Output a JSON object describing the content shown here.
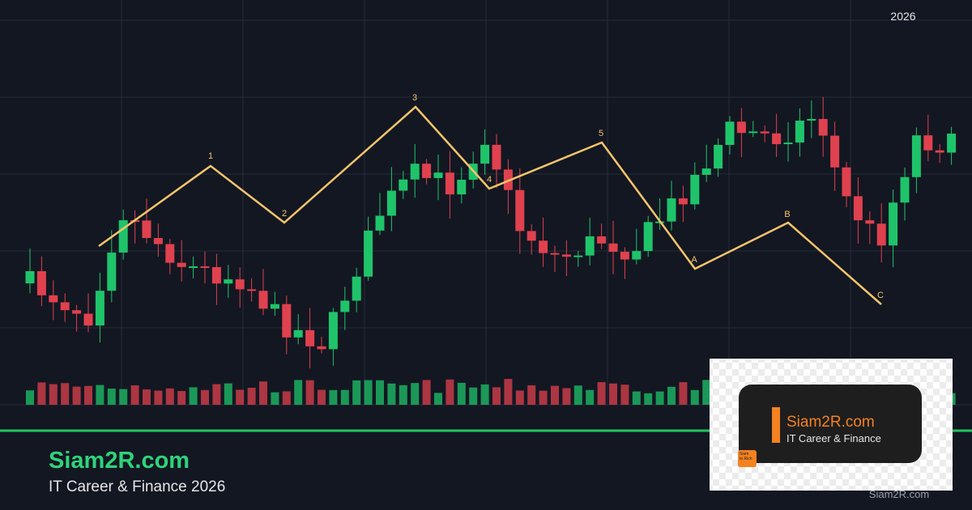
{
  "header": {
    "year": "2026"
  },
  "waves": {
    "labels": [
      "1",
      "2",
      "3",
      "4",
      "5",
      "A",
      "B",
      "C"
    ]
  },
  "brand": {
    "name": "Siam2R.com",
    "tagline": "IT Career & Finance 2026"
  },
  "logo": {
    "name": "Siam2R.com",
    "tagline": "IT Career & Finance",
    "badge": "Siam to Rich"
  },
  "watermark": "Siam2R.com"
}
